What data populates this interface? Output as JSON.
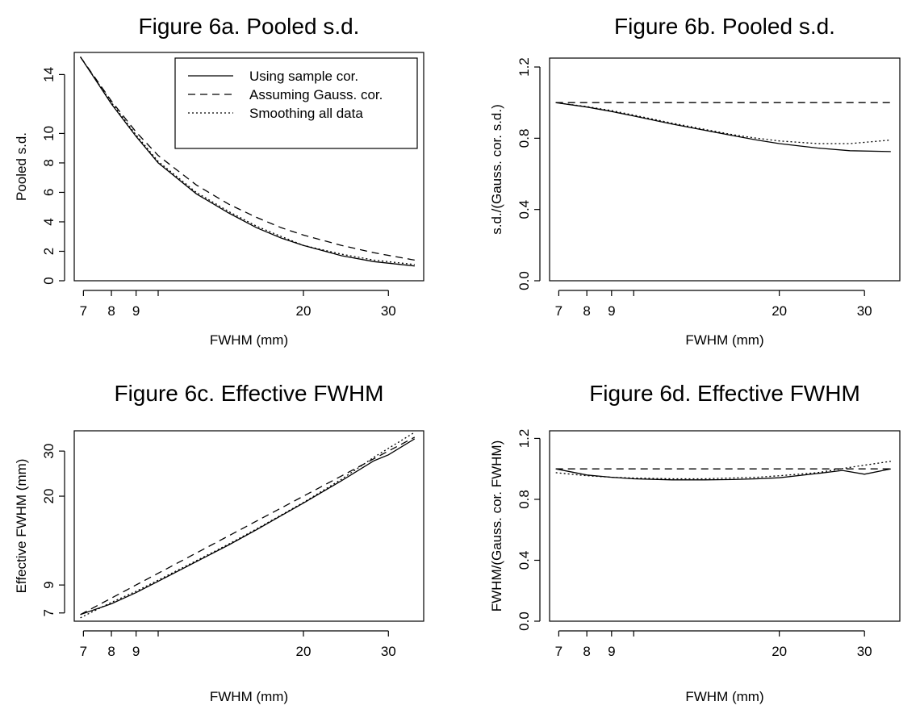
{
  "chart_data": [
    {
      "id": "fig6a",
      "type": "line",
      "title": "Figure 6a. Pooled s.d.",
      "xlabel": "FWHM (mm)",
      "ylabel": "Pooled s.d.",
      "xscale": "log",
      "xlim": [
        6.7,
        35.5
      ],
      "ylim": [
        0,
        15.5
      ],
      "xticks": [
        {
          "v": 7,
          "label": "7"
        },
        {
          "v": 8,
          "label": "8"
        },
        {
          "v": 9,
          "label": "9"
        },
        {
          "v": 10,
          "label": ""
        },
        {
          "v": 20,
          "label": "20"
        },
        {
          "v": 30,
          "label": "30"
        }
      ],
      "yticks": [
        {
          "v": 0,
          "label": "0"
        },
        {
          "v": 2,
          "label": "2"
        },
        {
          "v": 4,
          "label": "4"
        },
        {
          "v": 6,
          "label": "6"
        },
        {
          "v": 8,
          "label": "8"
        },
        {
          "v": 10,
          "label": "10"
        },
        {
          "v": 14,
          "label": "14"
        }
      ],
      "legend": {
        "placement": "top-right",
        "entries": [
          "Using sample cor.",
          "Assuming Gauss. cor.",
          "Smoothing all data"
        ]
      },
      "series": [
        {
          "style": "solid",
          "x": [
            6.9,
            8,
            9,
            10,
            12,
            14,
            16,
            18,
            20,
            24,
            28,
            34
          ],
          "y": [
            15.2,
            12.0,
            9.8,
            8.0,
            5.9,
            4.6,
            3.6,
            2.9,
            2.4,
            1.7,
            1.3,
            1.0
          ]
        },
        {
          "style": "dashed",
          "x": [
            6.9,
            8,
            9,
            10,
            12,
            14,
            16,
            18,
            20,
            24,
            28,
            34
          ],
          "y": [
            15.2,
            12.2,
            10.1,
            8.5,
            6.5,
            5.2,
            4.3,
            3.6,
            3.1,
            2.4,
            1.9,
            1.4
          ]
        },
        {
          "style": "dotted",
          "x": [
            6.9,
            8,
            9,
            10,
            12,
            14,
            16,
            18,
            20,
            24,
            28,
            34
          ],
          "y": [
            15.2,
            12.1,
            9.9,
            8.1,
            6.0,
            4.7,
            3.7,
            3.0,
            2.4,
            1.8,
            1.4,
            1.1
          ]
        }
      ]
    },
    {
      "id": "fig6b",
      "type": "line",
      "title": "Figure 6b. Pooled s.d.",
      "xlabel": "FWHM (mm)",
      "ylabel": "s.d./(Gauss. cor. s.d.)",
      "xscale": "log",
      "xlim": [
        6.7,
        35.5
      ],
      "ylim": [
        0,
        1.25
      ],
      "xticks": [
        {
          "v": 7,
          "label": "7"
        },
        {
          "v": 8,
          "label": "8"
        },
        {
          "v": 9,
          "label": "9"
        },
        {
          "v": 10,
          "label": ""
        },
        {
          "v": 20,
          "label": "20"
        },
        {
          "v": 30,
          "label": "30"
        }
      ],
      "yticks": [
        {
          "v": 0,
          "label": "0.0"
        },
        {
          "v": 0.4,
          "label": "0.4"
        },
        {
          "v": 0.8,
          "label": "0.8"
        },
        {
          "v": 1.2,
          "label": "1.2"
        }
      ],
      "series": [
        {
          "style": "solid",
          "x": [
            6.9,
            8,
            9,
            10,
            12,
            14,
            16,
            18,
            20,
            24,
            28,
            34
          ],
          "y": [
            1.0,
            0.975,
            0.95,
            0.925,
            0.88,
            0.845,
            0.815,
            0.79,
            0.77,
            0.745,
            0.73,
            0.725
          ]
        },
        {
          "style": "dashed",
          "x": [
            6.9,
            34
          ],
          "y": [
            1.0,
            1.0
          ]
        },
        {
          "style": "dotted",
          "x": [
            6.9,
            8,
            9,
            10,
            12,
            14,
            16,
            18,
            20,
            24,
            28,
            34
          ],
          "y": [
            1.0,
            0.978,
            0.955,
            0.93,
            0.885,
            0.85,
            0.82,
            0.8,
            0.785,
            0.77,
            0.77,
            0.79
          ]
        }
      ]
    },
    {
      "id": "fig6c",
      "type": "line",
      "title": "Figure 6c. Effective FWHM",
      "xlabel": "FWHM (mm)",
      "ylabel": "Effective FWHM (mm)",
      "xscale": "log",
      "yscale": "log",
      "xlim": [
        6.7,
        35.5
      ],
      "ylim": [
        6.5,
        36
      ],
      "xticks": [
        {
          "v": 7,
          "label": "7"
        },
        {
          "v": 8,
          "label": "8"
        },
        {
          "v": 9,
          "label": "9"
        },
        {
          "v": 10,
          "label": ""
        },
        {
          "v": 20,
          "label": "20"
        },
        {
          "v": 30,
          "label": "30"
        }
      ],
      "yticks": [
        {
          "v": 7,
          "label": "7"
        },
        {
          "v": 9,
          "label": "9"
        },
        {
          "v": 20,
          "label": "20"
        },
        {
          "v": 30,
          "label": "30"
        }
      ],
      "series": [
        {
          "style": "solid",
          "x": [
            6.9,
            8,
            9,
            10,
            12,
            14,
            16,
            18,
            20,
            24,
            28,
            30,
            34
          ],
          "y": [
            6.9,
            7.6,
            8.4,
            9.3,
            11.1,
            12.9,
            14.8,
            16.8,
            18.8,
            23.0,
            27.5,
            29.0,
            33.5
          ]
        },
        {
          "style": "dashed",
          "x": [
            6.9,
            8,
            9,
            10,
            12,
            14,
            16,
            18,
            20,
            24,
            28,
            34
          ],
          "y": [
            6.9,
            8.0,
            9.0,
            10.0,
            12.0,
            14.0,
            16.0,
            18.0,
            20.0,
            24.0,
            28.0,
            34.0
          ]
        },
        {
          "style": "dotted",
          "x": [
            6.9,
            8,
            9,
            10,
            12,
            14,
            16,
            18,
            20,
            24,
            28,
            34
          ],
          "y": [
            6.7,
            7.7,
            8.5,
            9.4,
            11.2,
            13.0,
            14.9,
            16.9,
            18.9,
            23.3,
            28.4,
            35.5
          ]
        }
      ]
    },
    {
      "id": "fig6d",
      "type": "line",
      "title": "Figure 6d. Effective FWHM",
      "xlabel": "FWHM (mm)",
      "ylabel": "FWHM/(Gauss. cor. FWHM)",
      "xscale": "log",
      "xlim": [
        6.7,
        35.5
      ],
      "ylim": [
        0,
        1.25
      ],
      "xticks": [
        {
          "v": 7,
          "label": "7"
        },
        {
          "v": 8,
          "label": "8"
        },
        {
          "v": 9,
          "label": "9"
        },
        {
          "v": 10,
          "label": ""
        },
        {
          "v": 20,
          "label": "20"
        },
        {
          "v": 30,
          "label": "30"
        }
      ],
      "yticks": [
        {
          "v": 0,
          "label": "0.0"
        },
        {
          "v": 0.4,
          "label": "0.4"
        },
        {
          "v": 0.8,
          "label": "0.8"
        },
        {
          "v": 1.2,
          "label": "1.2"
        }
      ],
      "series": [
        {
          "style": "solid",
          "x": [
            6.9,
            8,
            9,
            10,
            12,
            14,
            16,
            18,
            20,
            24,
            27,
            30,
            34
          ],
          "y": [
            1.0,
            0.96,
            0.945,
            0.935,
            0.928,
            0.928,
            0.93,
            0.935,
            0.942,
            0.97,
            0.99,
            0.965,
            1.0
          ]
        },
        {
          "style": "dashed",
          "x": [
            6.9,
            34
          ],
          "y": [
            1.0,
            1.0
          ]
        },
        {
          "style": "dotted",
          "x": [
            6.9,
            8,
            9,
            10,
            12,
            14,
            16,
            18,
            20,
            24,
            28,
            34
          ],
          "y": [
            0.975,
            0.955,
            0.945,
            0.94,
            0.935,
            0.935,
            0.94,
            0.945,
            0.955,
            0.975,
            1.01,
            1.05
          ]
        }
      ]
    }
  ]
}
